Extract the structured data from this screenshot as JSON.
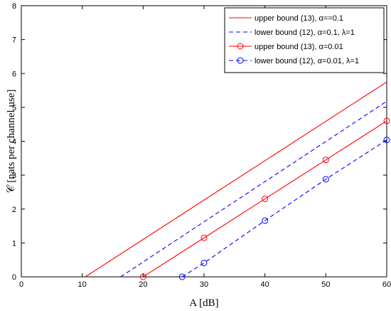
{
  "chart_data": {
    "type": "line",
    "xlabel": "A [dB]",
    "ylabel": "𝒞 [nats per channel use]",
    "xlim": [
      0,
      60
    ],
    "ylim": [
      0,
      8
    ],
    "xticks": [
      0,
      10,
      20,
      30,
      40,
      50,
      60
    ],
    "yticks": [
      0,
      1,
      2,
      3,
      4,
      5,
      6,
      7,
      8
    ],
    "grid": false,
    "legend_position": "top-right",
    "series": [
      {
        "name": "upper bound (13), α==0.1",
        "color": "#ff0000",
        "line": "solid",
        "marker": "none",
        "x": [
          10.5,
          60
        ],
        "y": [
          0,
          5.75
        ]
      },
      {
        "name": "lower bound (12), α=0.1, λ=1",
        "color": "#0000ff",
        "line": "dashed",
        "marker": "none",
        "x": [
          16.3,
          60
        ],
        "y": [
          0,
          5.18
        ]
      },
      {
        "name": "upper bound (13), α=0.01",
        "color": "#ff0000",
        "line": "solid",
        "marker": "circle",
        "x": [
          20,
          30,
          40,
          50,
          60
        ],
        "y": [
          0.0,
          1.15,
          2.3,
          3.45,
          4.6
        ]
      },
      {
        "name": "lower bound (12), α=0.01, λ=1",
        "color": "#0000ff",
        "line": "dashed",
        "marker": "circle",
        "x": [
          26.4,
          30,
          40,
          50,
          60
        ],
        "y": [
          0.0,
          0.41,
          1.66,
          2.88,
          4.04
        ]
      }
    ]
  }
}
